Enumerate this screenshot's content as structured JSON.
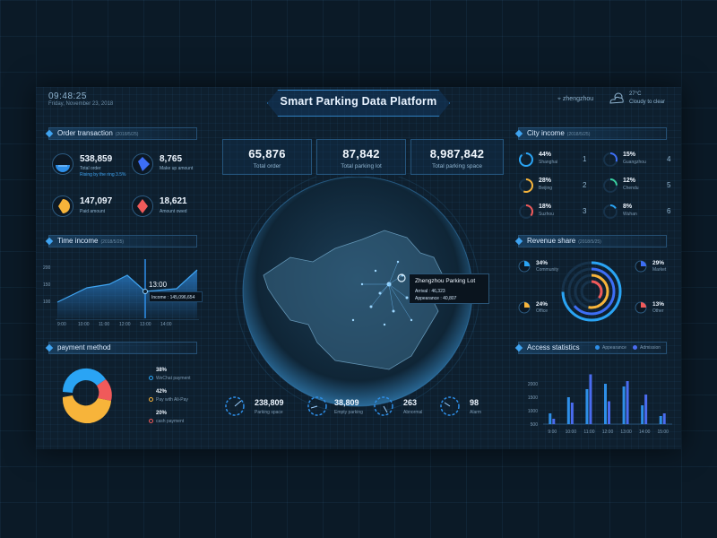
{
  "header": {
    "time": "09:48:25",
    "date": "Friday, November 23, 2018",
    "title": "Smart Parking Data Platform",
    "location": "zhengzhou",
    "temperature": "27°C",
    "weather": "Cloudy to clear"
  },
  "order_transaction": {
    "title": "Order transaction",
    "date": "(2018/5/25)",
    "items": [
      {
        "value": "538,859",
        "label": "Total order",
        "note": "Rising by the ring 3.5%",
        "color": "#2e8fe8"
      },
      {
        "value": "8,765",
        "label": "Make up amount",
        "color": "#3d6ef5"
      },
      {
        "value": "147,097",
        "label": "Paid amount",
        "color": "#f7b43a"
      },
      {
        "value": "18,621",
        "label": "Amount owed",
        "color": "#f05a5a"
      }
    ]
  },
  "time_income": {
    "title": "Time income",
    "date": "(2018/5/25)",
    "y_ticks": [
      "200",
      "150",
      "100"
    ],
    "x_ticks": [
      "9:00",
      "10:00",
      "11:00",
      "12:00",
      "13:00",
      "14:00"
    ],
    "tooltip_time": "13:00",
    "tooltip_text": "Income : 145,096,654"
  },
  "payment_method": {
    "title": "payment method",
    "items": [
      {
        "percent": "38%",
        "label": "WeChat payment",
        "color": "#2aa4f4"
      },
      {
        "percent": "42%",
        "label": "Pay with Ali-Pay",
        "color": "#f7b43a"
      },
      {
        "percent": "20%",
        "label": "cash payment",
        "color": "#f05a5a"
      }
    ]
  },
  "top_stats": [
    {
      "value": "65,876",
      "label": "Total order"
    },
    {
      "value": "87,842",
      "label": "Total parking lot"
    },
    {
      "value": "8,987,842",
      "label": "Total parking space"
    }
  ],
  "map_tooltip": {
    "title": "Zhengzhou  Parking Lot",
    "arrival": "Arrival : 46,323",
    "appearance": "Appearance : 40,807"
  },
  "bottom_gauges": [
    {
      "value": "238,809",
      "label": "Parking space"
    },
    {
      "value": "38,809",
      "label": "Empty parking"
    },
    {
      "value": "263",
      "label": "Abnormal"
    },
    {
      "value": "98",
      "label": "Alarm"
    }
  ],
  "city_income": {
    "title": "City income",
    "date": "(2018/5/25)",
    "cities": [
      {
        "percent": "44%",
        "name": "Shanghai",
        "rank": "1",
        "color": "#2aa4f4",
        "fraction": 0.44
      },
      {
        "percent": "15%",
        "name": "Guangzhou",
        "rank": "4",
        "color": "#3d6ef5",
        "fraction": 0.15
      },
      {
        "percent": "28%",
        "name": "Beijing",
        "rank": "2",
        "color": "#f7b43a",
        "fraction": 0.28
      },
      {
        "percent": "12%",
        "name": "Chendu",
        "rank": "5",
        "color": "#3ad1a0",
        "fraction": 0.12
      },
      {
        "percent": "18%",
        "name": "Suzhou",
        "rank": "3",
        "color": "#f05a5a",
        "fraction": 0.18
      },
      {
        "percent": "8%",
        "name": "Wuhan",
        "rank": "6",
        "color": "#2aa4f4",
        "fraction": 0.08
      }
    ]
  },
  "revenue_share": {
    "title": "Revenue share",
    "date": "(2018/5/25)",
    "items": [
      {
        "percent": "34%",
        "label": "Community",
        "color": "#2aa4f4"
      },
      {
        "percent": "29%",
        "label": "Market",
        "color": "#3d6ef5"
      },
      {
        "percent": "24%",
        "label": "Office",
        "color": "#f7b43a"
      },
      {
        "percent": "13%",
        "label": "Other",
        "color": "#f05a5a"
      }
    ]
  },
  "access_statistics": {
    "title": "Access statistics",
    "legend": [
      "Appearance",
      "Admission"
    ],
    "chart_data": {
      "type": "bar",
      "title": "Access statistics",
      "categories": [
        "9:00",
        "10:00",
        "11:00",
        "12:00",
        "13:00",
        "14:00",
        "15:00"
      ],
      "series": [
        {
          "name": "Appearance",
          "values": [
            900,
            1500,
            1800,
            2000,
            1900,
            1200,
            800
          ]
        },
        {
          "name": "Admission",
          "values": [
            700,
            1300,
            2350,
            1350,
            2100,
            1600,
            900
          ]
        }
      ],
      "y_ticks": [
        "2000",
        "1500",
        "1000",
        "500"
      ],
      "ylim": [
        500,
        2500
      ],
      "colors": [
        "#2e8fe8",
        "#4a6cf0"
      ]
    }
  }
}
